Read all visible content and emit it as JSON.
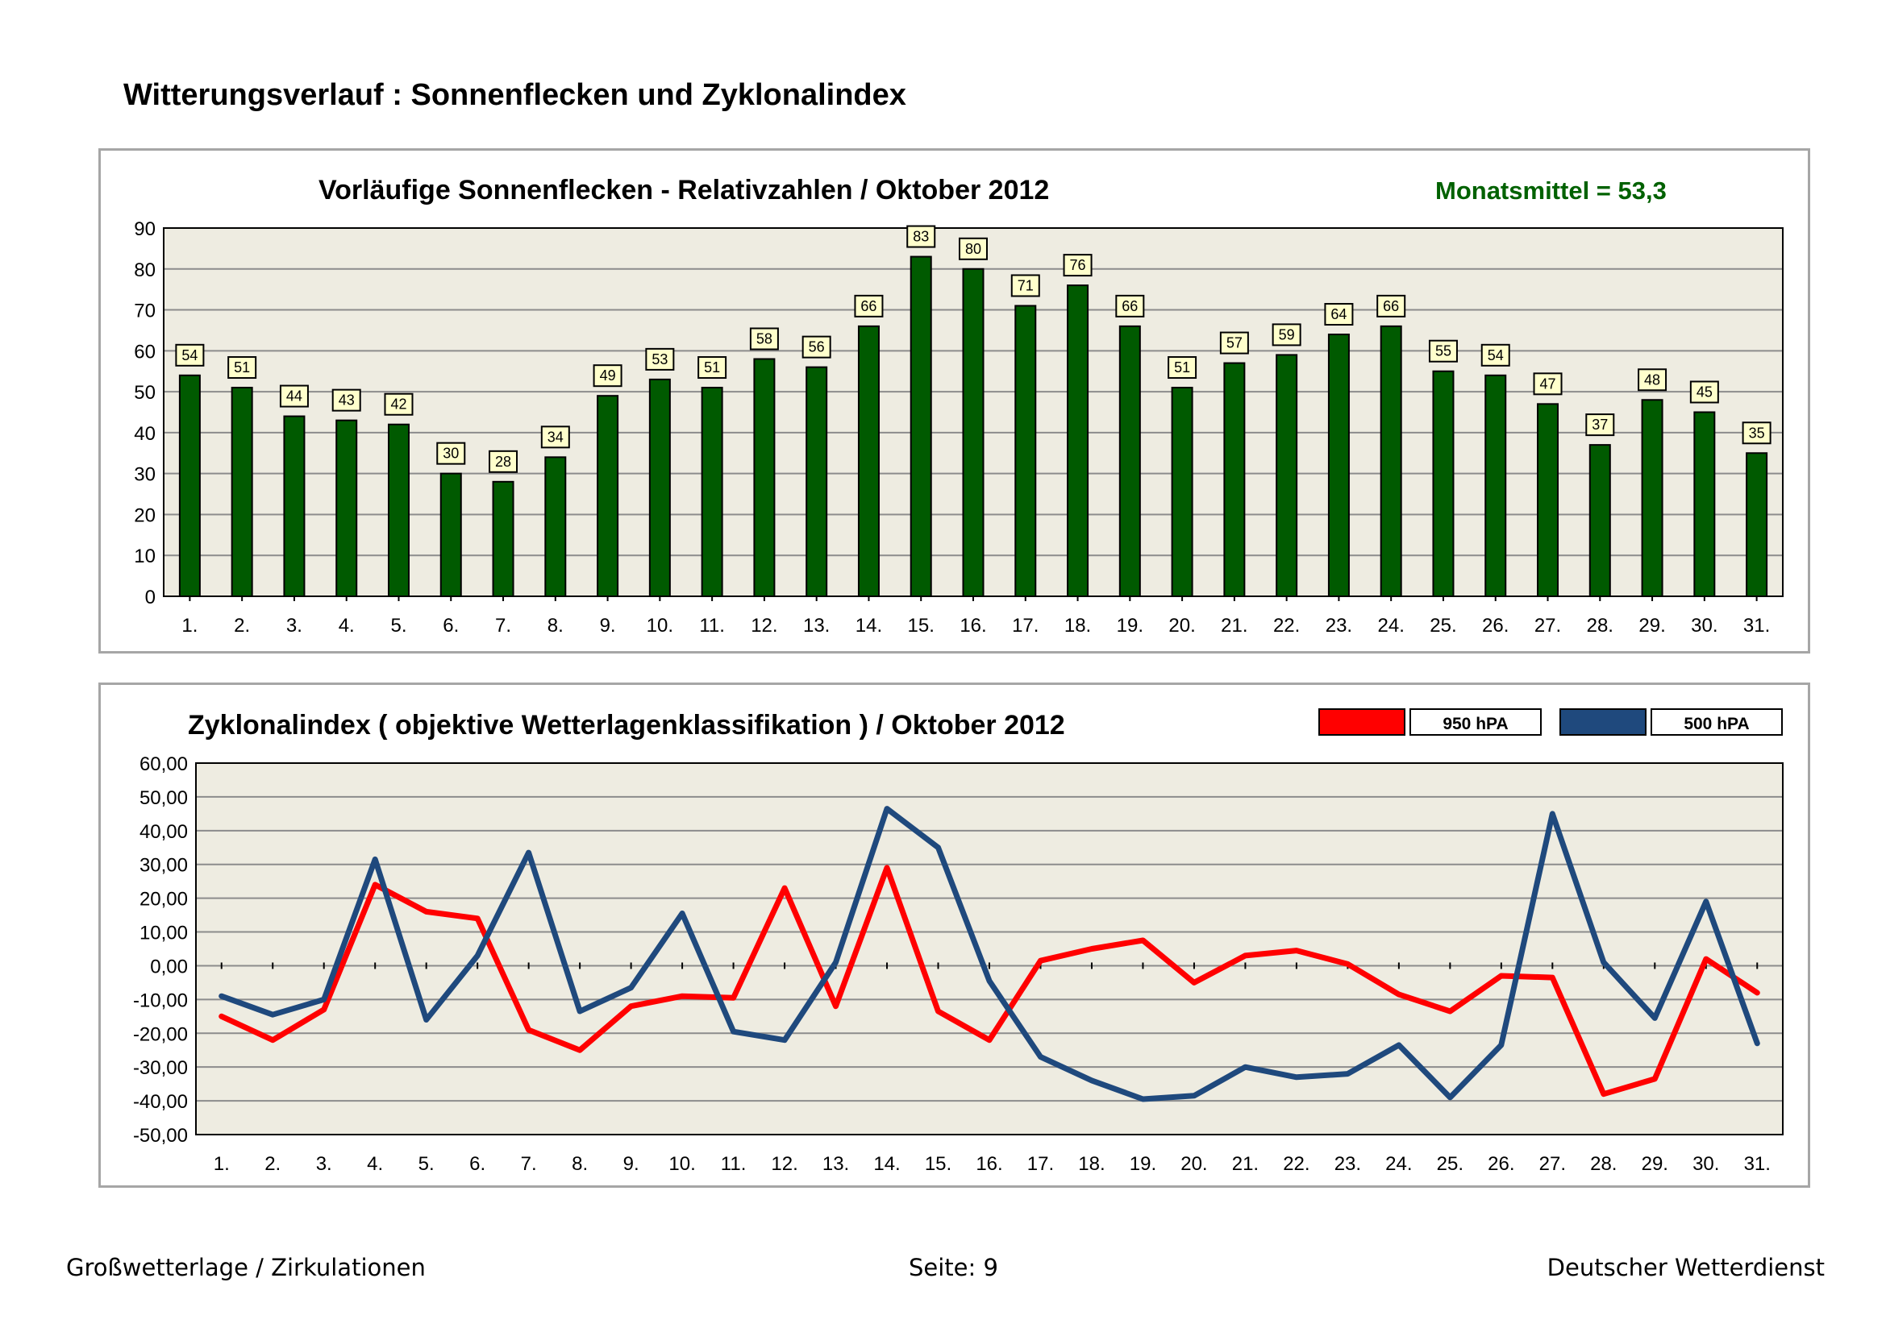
{
  "page_title": "Witterungsverlauf : Sonnenflecken und Zyklonalindex",
  "footer": {
    "left": "Großwetterlage / Zirkulationen",
    "center": "Seite: 9",
    "right": "Deutscher Wetterdienst"
  },
  "chart_data": [
    {
      "type": "bar",
      "title": "Vorläufige Sonnenflecken - Relativzahlen   /   Oktober 2012",
      "annotation": "Monatsmittel = 53,3",
      "categories": [
        "1.",
        "2.",
        "3.",
        "4.",
        "5.",
        "6.",
        "7.",
        "8.",
        "9.",
        "10.",
        "11.",
        "12.",
        "13.",
        "14.",
        "15.",
        "16.",
        "17.",
        "18.",
        "19.",
        "20.",
        "21.",
        "22.",
        "23.",
        "24.",
        "25.",
        "26.",
        "27.",
        "28.",
        "29.",
        "30.",
        "31."
      ],
      "values": [
        54,
        51,
        44,
        43,
        42,
        30,
        28,
        34,
        49,
        53,
        51,
        58,
        56,
        66,
        83,
        80,
        71,
        76,
        66,
        51,
        57,
        59,
        64,
        66,
        55,
        54,
        47,
        37,
        48,
        45,
        35
      ],
      "yticks": [
        "0",
        "10",
        "20",
        "30",
        "40",
        "50",
        "60",
        "70",
        "80",
        "90"
      ],
      "ylim": [
        0,
        90
      ],
      "grid": true,
      "colors": {
        "bar": "#005a00",
        "plot_bg": "#eeece1",
        "label_bg": "#ffffcc",
        "annotation": "#006100"
      }
    },
    {
      "type": "line",
      "title": "Zyklonalindex  ( objektive Wetterlagenklassifikation )  /  Oktober 2012",
      "categories": [
        "1.",
        "2.",
        "3.",
        "4.",
        "5.",
        "6.",
        "7.",
        "8.",
        "9.",
        "10.",
        "11.",
        "12.",
        "13.",
        "14.",
        "15.",
        "16.",
        "17.",
        "18.",
        "19.",
        "20.",
        "21.",
        "22.",
        "23.",
        "24.",
        "25.",
        "26.",
        "27.",
        "28.",
        "29.",
        "30.",
        "31."
      ],
      "series": [
        {
          "name": "950 hPA",
          "color": "#ff0000",
          "values": [
            -15,
            -22,
            -13,
            24,
            16,
            14,
            -19,
            -25,
            -12,
            -9,
            -9.5,
            23,
            -12,
            29,
            -13.5,
            -22,
            1.5,
            5,
            7.5,
            -5,
            3,
            4.5,
            0.5,
            -8.5,
            -13.5,
            -3,
            -3.5,
            -38,
            -33.5,
            2,
            -8
          ]
        },
        {
          "name": "500 hPA",
          "color": "#1f497d",
          "values": [
            -9,
            -14.5,
            -10,
            31.5,
            -16,
            3,
            33.5,
            -13.5,
            -6.5,
            15.5,
            -19.5,
            -22,
            1,
            46.5,
            35,
            -4.5,
            -27,
            -34,
            -39.5,
            -38.5,
            -30,
            -33,
            -32,
            -23.5,
            -39,
            -23.5,
            45,
            1,
            -15.5,
            19,
            -23
          ]
        }
      ],
      "yticks": [
        "-50,00",
        "-40,00",
        "-30,00",
        "-20,00",
        "-10,00",
        "0,00",
        "10,00",
        "20,00",
        "30,00",
        "40,00",
        "50,00",
        "60,00"
      ],
      "ylim": [
        -50,
        60
      ],
      "grid": true,
      "legend_position": "top-right",
      "colors": {
        "plot_bg": "#eeece1"
      }
    }
  ]
}
